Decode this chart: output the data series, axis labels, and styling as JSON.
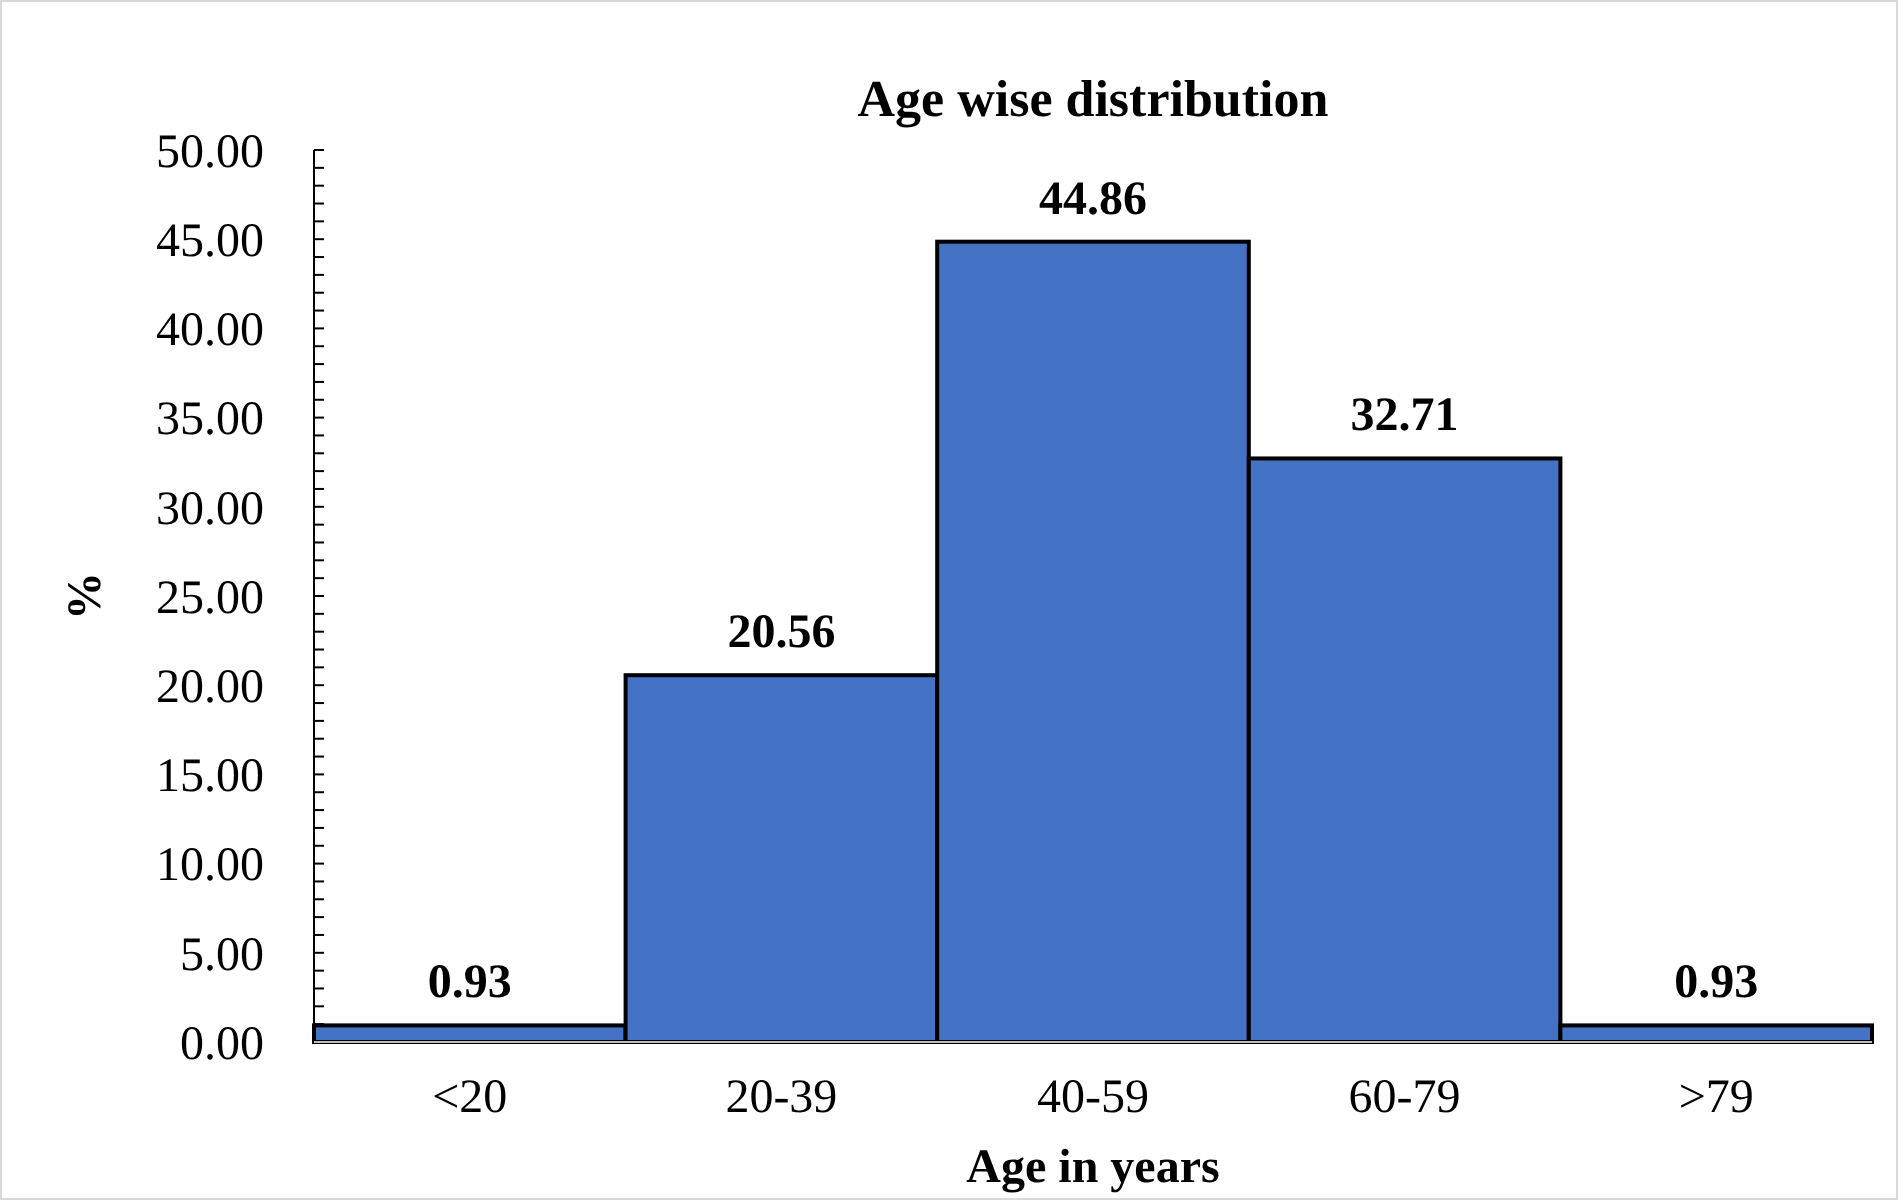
{
  "chart_data": {
    "type": "bar",
    "title": "Age wise distribution",
    "xlabel": "Age in years",
    "ylabel": "%",
    "categories": [
      "<20",
      "20-39",
      "40-59",
      "60-79",
      ">79"
    ],
    "values": [
      0.93,
      20.56,
      44.86,
      32.71,
      0.93
    ],
    "color": "#4472c4",
    "data_labels": true,
    "ylim": [
      0,
      50
    ],
    "yticks": [
      {
        "value": 0,
        "label": "0.00"
      },
      {
        "value": 1,
        "label": null
      },
      {
        "value": 2,
        "label": null
      },
      {
        "value": 3,
        "label": null
      },
      {
        "value": 4,
        "label": null
      },
      {
        "value": 5,
        "label": "5.00"
      },
      {
        "value": 6,
        "label": null
      },
      {
        "value": 7,
        "label": null
      },
      {
        "value": 8,
        "label": null
      },
      {
        "value": 9,
        "label": null
      },
      {
        "value": 10,
        "label": "10.00"
      },
      {
        "value": 11,
        "label": null
      },
      {
        "value": 12,
        "label": null
      },
      {
        "value": 13,
        "label": null
      },
      {
        "value": 14,
        "label": null
      },
      {
        "value": 15,
        "label": "15.00"
      },
      {
        "value": 16,
        "label": null
      },
      {
        "value": 17,
        "label": null
      },
      {
        "value": 18,
        "label": null
      },
      {
        "value": 19,
        "label": null
      },
      {
        "value": 20,
        "label": "20.00"
      },
      {
        "value": 21,
        "label": null
      },
      {
        "value": 22,
        "label": null
      },
      {
        "value": 23,
        "label": null
      },
      {
        "value": 24,
        "label": null
      },
      {
        "value": 25,
        "label": "25.00"
      },
      {
        "value": 26,
        "label": null
      },
      {
        "value": 27,
        "label": null
      },
      {
        "value": 28,
        "label": null
      },
      {
        "value": 29,
        "label": null
      },
      {
        "value": 30,
        "label": "30.00"
      },
      {
        "value": 31,
        "label": null
      },
      {
        "value": 32,
        "label": null
      },
      {
        "value": 33,
        "label": null
      },
      {
        "value": 34,
        "label": null
      },
      {
        "value": 35,
        "label": "35.00"
      },
      {
        "value": 36,
        "label": null
      },
      {
        "value": 37,
        "label": null
      },
      {
        "value": 38,
        "label": null
      },
      {
        "value": 39,
        "label": null
      },
      {
        "value": 40,
        "label": "40.00"
      },
      {
        "value": 41,
        "label": null
      },
      {
        "value": 42,
        "label": null
      },
      {
        "value": 43,
        "label": null
      },
      {
        "value": 44,
        "label": null
      },
      {
        "value": 45,
        "label": "45.00"
      },
      {
        "value": 46,
        "label": null
      },
      {
        "value": 47,
        "label": null
      },
      {
        "value": 48,
        "label": null
      },
      {
        "value": 49,
        "label": null
      },
      {
        "value": 50,
        "label": "50.00"
      }
    ],
    "grid": false
  }
}
